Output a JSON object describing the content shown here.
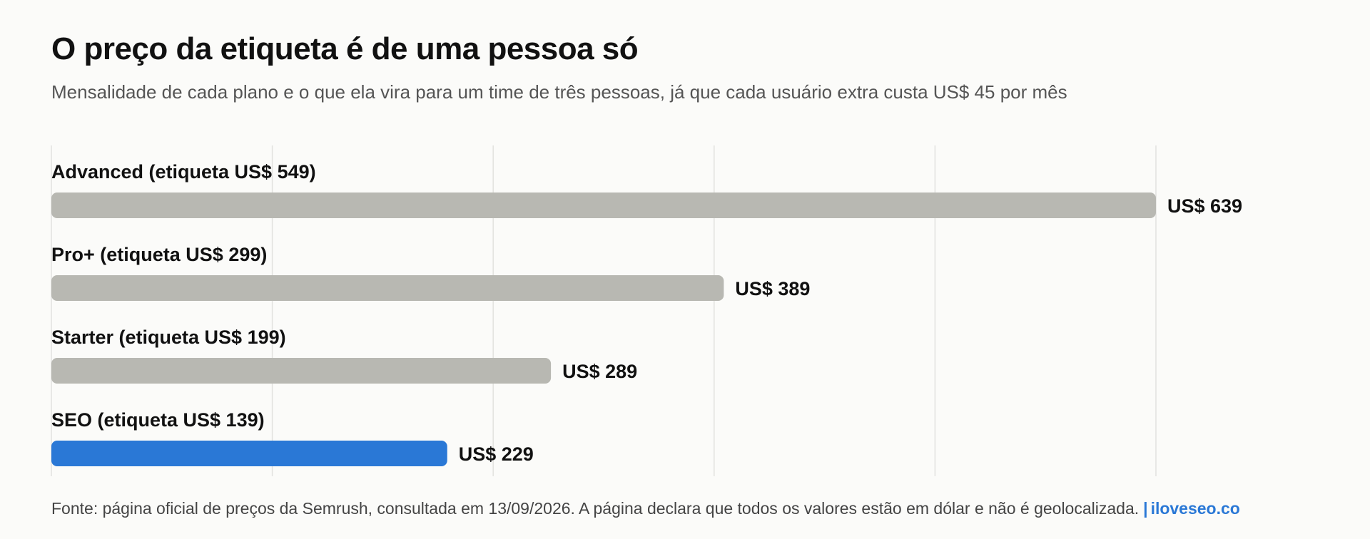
{
  "title": "O preço da etiqueta é de uma pessoa só",
  "subtitle": "Mensalidade de cada plano e o que ela vira para um time de três pessoas, já que cada usuário extra custa US$ 45 por mês",
  "footer": {
    "source": "Fonte: página oficial de preços da Semrush, consultada em 13/09/2026. A página declara que todos os valores estão em dólar e não é geolocalizada.",
    "separator": "|",
    "brand": "iloveseo.co"
  },
  "colors": {
    "default_bar": "#b8b8b2",
    "highlight_bar": "#2a78d6",
    "grid": "#e2e2df"
  },
  "chart_data": {
    "type": "bar",
    "orientation": "horizontal",
    "categories": [
      "Advanced (etiqueta US$ 549)",
      "Pro+ (etiqueta US$ 299)",
      "Starter (etiqueta US$ 199)",
      "SEO (etiqueta US$ 139)"
    ],
    "values": [
      639,
      389,
      289,
      229
    ],
    "value_labels": [
      "US$ 639",
      "US$ 389",
      "US$ 289",
      "US$ 229"
    ],
    "highlight": [
      false,
      false,
      false,
      true
    ],
    "xlim": [
      0,
      639
    ],
    "grid": true,
    "legend": "none"
  }
}
